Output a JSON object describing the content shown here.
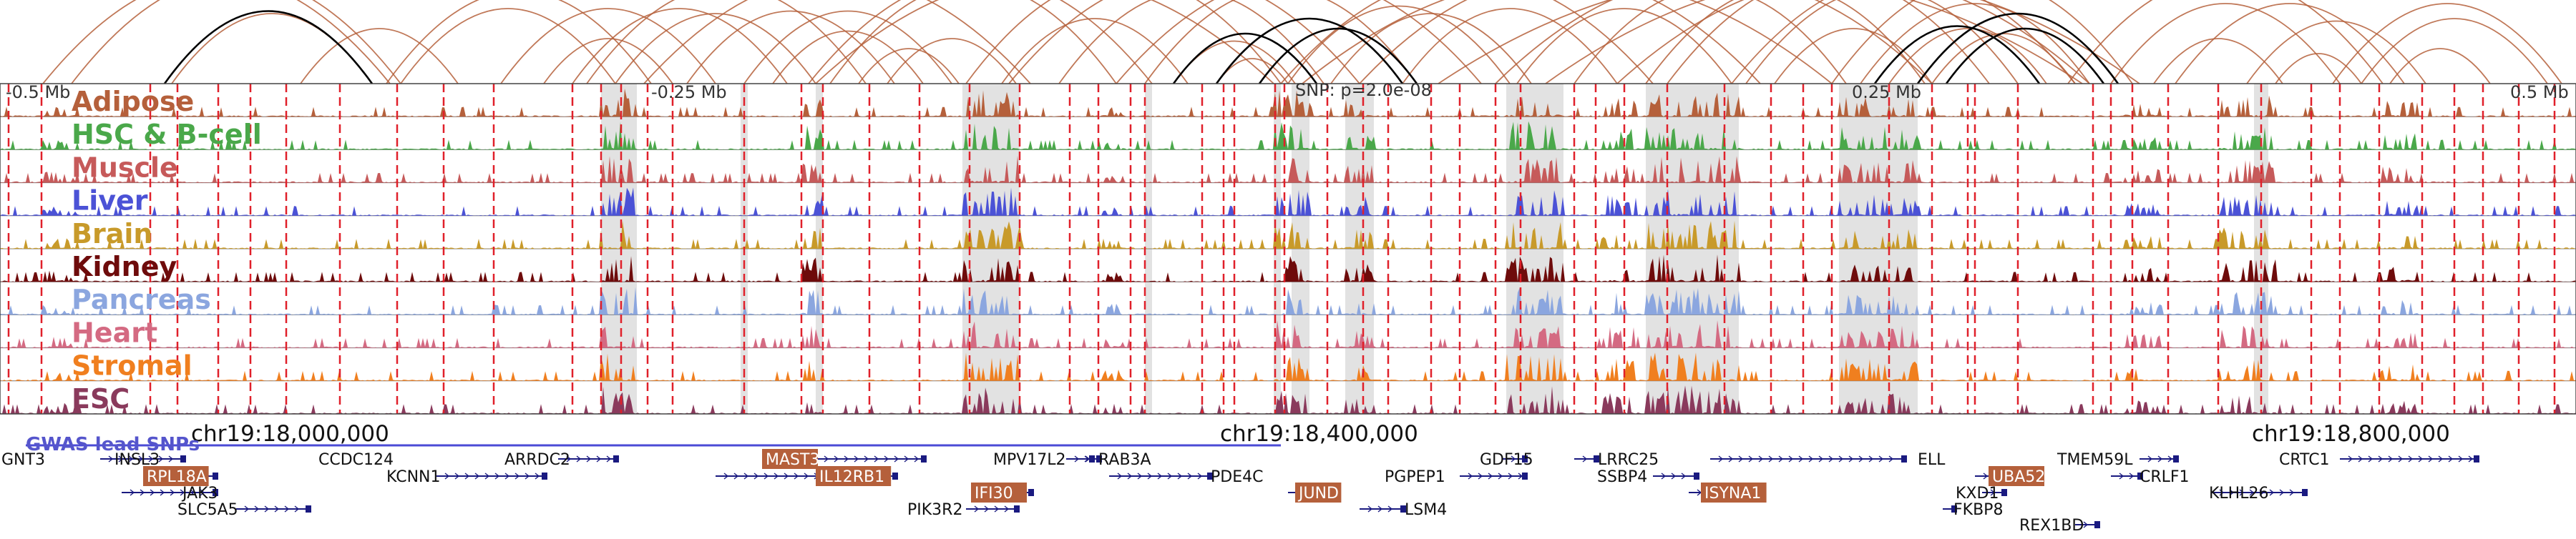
{
  "scale": {
    "left_label": "-0.5 Mb",
    "mid_left_label": "-0.25 Mb",
    "snp_label": "SNP: p=2.0e-08",
    "mid_right_label": "0.25 Mb",
    "right_label": "0.5 Mb"
  },
  "tracks": [
    {
      "name": "Adipose",
      "color": "#b5603b"
    },
    {
      "name": "HSC & B-cell",
      "color": "#4aa84a"
    },
    {
      "name": "Muscle",
      "color": "#c65a5a"
    },
    {
      "name": "Liver",
      "color": "#4b52d6"
    },
    {
      "name": "Brain",
      "color": "#c89a2a"
    },
    {
      "name": "Kidney",
      "color": "#6e0b0b"
    },
    {
      "name": "Pancreas",
      "color": "#8ba6df"
    },
    {
      "name": "Heart",
      "color": "#d46a82"
    },
    {
      "name": "Stromal",
      "color": "#f07f1f"
    },
    {
      "name": "ESC",
      "color": "#8a3a5c"
    }
  ],
  "coords": [
    {
      "label": "chr19:18,000,000"
    },
    {
      "label": "chr19:18,400,000"
    },
    {
      "label": "chr19:18,800,000"
    }
  ],
  "gwas_label": "GWAS lead SNPs",
  "genes": [
    {
      "label": "GNT3"
    },
    {
      "label": "INSL3"
    },
    {
      "label": "RPL18A",
      "highlight": true
    },
    {
      "label": "JAK3"
    },
    {
      "label": "SLC5A5"
    },
    {
      "label": "CCDC124"
    },
    {
      "label": "KCNN1"
    },
    {
      "label": "ARRDC2"
    },
    {
      "label": "MAST3",
      "highlight": true
    },
    {
      "label": "IL12RB1",
      "highlight": true
    },
    {
      "label": "MPV17L2"
    },
    {
      "label": "IFI30",
      "highlight": true
    },
    {
      "label": "PIK3R2"
    },
    {
      "label": "RAB3A"
    },
    {
      "label": "PDE4C"
    },
    {
      "label": "JUND",
      "highlight": true
    },
    {
      "label": "LSM4"
    },
    {
      "label": "PGPEP1"
    },
    {
      "label": "GDF15"
    },
    {
      "label": "LRRC25"
    },
    {
      "label": "SSBP4"
    },
    {
      "label": "ISYNA1",
      "highlight": true
    },
    {
      "label": "ELL"
    },
    {
      "label": "UBA52",
      "highlight": true
    },
    {
      "label": "KXD1"
    },
    {
      "label": "FKBP8"
    },
    {
      "label": "REX1BD"
    },
    {
      "label": "TMEM59L"
    },
    {
      "label": "CRLF1"
    },
    {
      "label": "KLHL26"
    },
    {
      "label": "CRTC1"
    }
  ],
  "colors": {
    "arc": "#b5603b",
    "arc_strong": "#000000",
    "snp_line": "#e0202a",
    "gene_highlight": "#b5603b",
    "gene_line": "#1a1a80",
    "gwas": "#4b4bd6"
  }
}
